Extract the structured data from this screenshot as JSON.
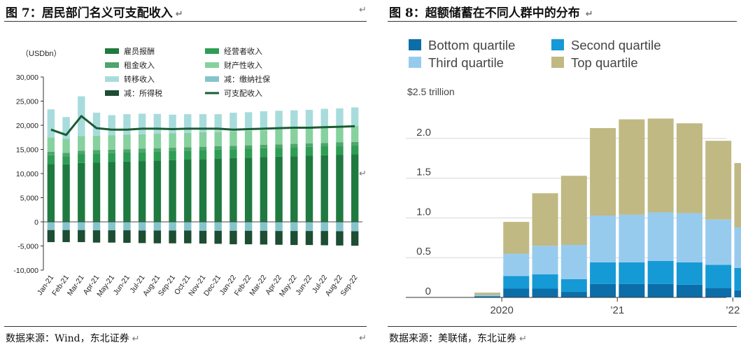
{
  "left": {
    "title": "图 7：居民部门名义可支配收入",
    "source": "数据来源：Wind，东北证券",
    "return_mark": "↵"
  },
  "right": {
    "title": "图 8：超额储蓄在不同人群中的分布",
    "source": "数据来源：美联储，东北证券",
    "return_mark": "↵"
  },
  "colors": {
    "wages": "#1f7a40",
    "business": "#2e9e55",
    "rent": "#4fa56e",
    "property": "#86d19d",
    "transfer": "#a8dcdc",
    "social_ins": "#86c4cc",
    "tax": "#1d4d33",
    "disposable": "#1a5c34",
    "bottom": "#0b6ea8",
    "second": "#159ad6",
    "third": "#97cbee",
    "top": "#c0b983"
  },
  "chart_data": [
    {
      "type": "bar",
      "stacked": true,
      "title": "",
      "ylabel": "（USDbn）",
      "ylim": [
        -10000,
        30000
      ],
      "yticks": [
        -10000,
        -5000,
        0,
        5000,
        10000,
        15000,
        20000,
        25000,
        30000
      ],
      "ytick_labels": [
        "-10,000",
        "-5,000",
        "0",
        "5,000",
        "10,000",
        "15,000",
        "20,000",
        "25,000",
        "30,000"
      ],
      "categories": [
        "Jan-21",
        "Feb-21",
        "Mar-21",
        "Apr-21",
        "May-21",
        "Jun-21",
        "Jul-21",
        "Aug-21",
        "Sep-21",
        "Oct-21",
        "Nov-21",
        "Dec-21",
        "Jan-22",
        "Feb-22",
        "Mar-22",
        "Apr-22",
        "May-22",
        "Jun-22",
        "Jul-22",
        "Aug-22",
        "Sep-22"
      ],
      "legend": [
        "雇员报酬",
        "经营者收入",
        "租金收入",
        "财产性收入",
        "转移收入",
        "减：缴纳社保",
        "减：所得税",
        "可支配收入"
      ],
      "series": [
        {
          "name": "雇员报酬",
          "color_key": "wages",
          "values": [
            12000,
            11900,
            12200,
            12300,
            12400,
            12500,
            12600,
            12700,
            12800,
            12900,
            13000,
            13100,
            13200,
            13300,
            13400,
            13500,
            13600,
            13700,
            13800,
            13900,
            14000
          ]
        },
        {
          "name": "经营者收入",
          "color_key": "business",
          "values": [
            1800,
            1700,
            1850,
            1850,
            1850,
            1850,
            1850,
            1850,
            1850,
            1850,
            1850,
            1850,
            1850,
            1850,
            1850,
            1850,
            1850,
            1850,
            1850,
            1850,
            1850
          ]
        },
        {
          "name": "租金收入",
          "color_key": "rent",
          "values": [
            700,
            700,
            700,
            700,
            700,
            700,
            700,
            700,
            700,
            700,
            700,
            700,
            700,
            700,
            700,
            700,
            700,
            700,
            700,
            700,
            700
          ]
        },
        {
          "name": "财产性收入",
          "color_key": "property",
          "values": [
            3000,
            2900,
            3000,
            3000,
            3000,
            3000,
            3000,
            3000,
            3000,
            3000,
            3000,
            3000,
            3000,
            3000,
            3000,
            3100,
            3100,
            3200,
            3200,
            3200,
            3300
          ]
        },
        {
          "name": "转移收入",
          "color_key": "transfer",
          "values": [
            5800,
            4500,
            8250,
            4750,
            4150,
            4250,
            4250,
            4100,
            3850,
            3850,
            3750,
            3650,
            3850,
            3850,
            3950,
            3850,
            3850,
            3750,
            3850,
            3850,
            3850
          ]
        },
        {
          "name": "减：缴纳社保",
          "color_key": "social_ins",
          "values": [
            -1700,
            -1700,
            -1700,
            -1750,
            -1750,
            -1750,
            -1800,
            -1800,
            -1800,
            -1800,
            -1850,
            -1850,
            -1850,
            -1850,
            -1850,
            -1900,
            -1900,
            -1900,
            -1900,
            -1950,
            -1950
          ]
        },
        {
          "name": "减：所得税",
          "color_key": "tax",
          "values": [
            -2500,
            -2500,
            -2500,
            -2550,
            -2550,
            -2600,
            -2600,
            -2650,
            -2650,
            -2650,
            -2650,
            -2700,
            -2800,
            -2800,
            -2850,
            -2850,
            -2900,
            -2900,
            -2950,
            -2950,
            -3000
          ]
        }
      ],
      "line": {
        "name": "可支配收入",
        "color_key": "disposable",
        "values": [
          19100,
          18000,
          21900,
          19400,
          19100,
          19100,
          19300,
          19300,
          19200,
          19300,
          19300,
          19300,
          19100,
          19200,
          19300,
          19400,
          19500,
          19500,
          19600,
          19700,
          19800
        ]
      }
    },
    {
      "type": "bar",
      "stacked": true,
      "title": "",
      "ylabel": "$2.5 trillion",
      "ylim": [
        0,
        2.5
      ],
      "yticks": [
        0,
        0.5,
        1.0,
        1.5,
        2.0
      ],
      "ytick_labels": [
        "0",
        "0.5",
        "1.0",
        "1.5",
        "2.0"
      ],
      "categories": [
        "2020 Q1",
        "2020 Q2",
        "2020 Q3",
        "2020 Q4",
        "2021 Q1",
        "2021 Q2",
        "2021 Q3",
        "2021 Q4",
        "2022 Q1",
        "2022 Q2",
        "2022 Q3"
      ],
      "xtick_labels": [
        {
          "index": 0.5,
          "label": "2020"
        },
        {
          "index": 4.5,
          "label": "’21"
        },
        {
          "index": 8.5,
          "label": "’22"
        }
      ],
      "legend": [
        "Bottom quartile",
        "Second quartile",
        "Third quartile",
        "Top quartile"
      ],
      "series": [
        {
          "name": "Bottom quartile",
          "color_key": "bottom",
          "values": [
            0.01,
            0.11,
            0.11,
            0.07,
            0.17,
            0.17,
            0.17,
            0.16,
            0.12,
            0.09,
            0.0
          ]
        },
        {
          "name": "Second quartile",
          "color_key": "second",
          "values": [
            0.01,
            0.16,
            0.18,
            0.16,
            0.27,
            0.27,
            0.29,
            0.28,
            0.29,
            0.28,
            0.0
          ]
        },
        {
          "name": "Third quartile",
          "color_key": "third",
          "values": [
            0.01,
            0.28,
            0.36,
            0.43,
            0.59,
            0.6,
            0.61,
            0.62,
            0.57,
            0.51,
            0.0
          ]
        },
        {
          "name": "Top quartile",
          "color_key": "top",
          "values": [
            0.03,
            0.4,
            0.66,
            0.87,
            1.1,
            1.2,
            1.18,
            1.13,
            0.99,
            0.81,
            0.0
          ]
        }
      ]
    }
  ]
}
